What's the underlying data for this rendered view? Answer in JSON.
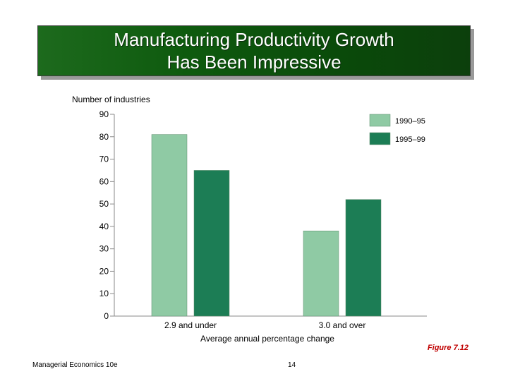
{
  "slide": {
    "title_line1": "Manufacturing Productivity Growth",
    "title_line2": "Has Been Impressive",
    "figure_label": "Figure 7.12",
    "footer_left": "Managerial Economics 10e",
    "page_number": "14"
  },
  "colors": {
    "series_1990_95": "#8fcaa4",
    "series_1995_99": "#1c7d55",
    "title_banner": "#0e5a0e",
    "figure_label": "#c00000"
  },
  "chart_data": {
    "type": "bar",
    "title": "",
    "ylabel": "Number of industries",
    "xlabel": "Average annual percentage change",
    "categories": [
      "2.9 and under",
      "3.0 and over"
    ],
    "series": [
      {
        "name": "1990–95",
        "values": [
          81,
          38
        ]
      },
      {
        "name": "1995–99",
        "values": [
          65,
          52
        ]
      }
    ],
    "ylim": [
      0,
      90
    ],
    "yticks": [
      0,
      10,
      20,
      30,
      40,
      50,
      60,
      70,
      80,
      90
    ],
    "grid": false,
    "legend_position": "top-right"
  }
}
